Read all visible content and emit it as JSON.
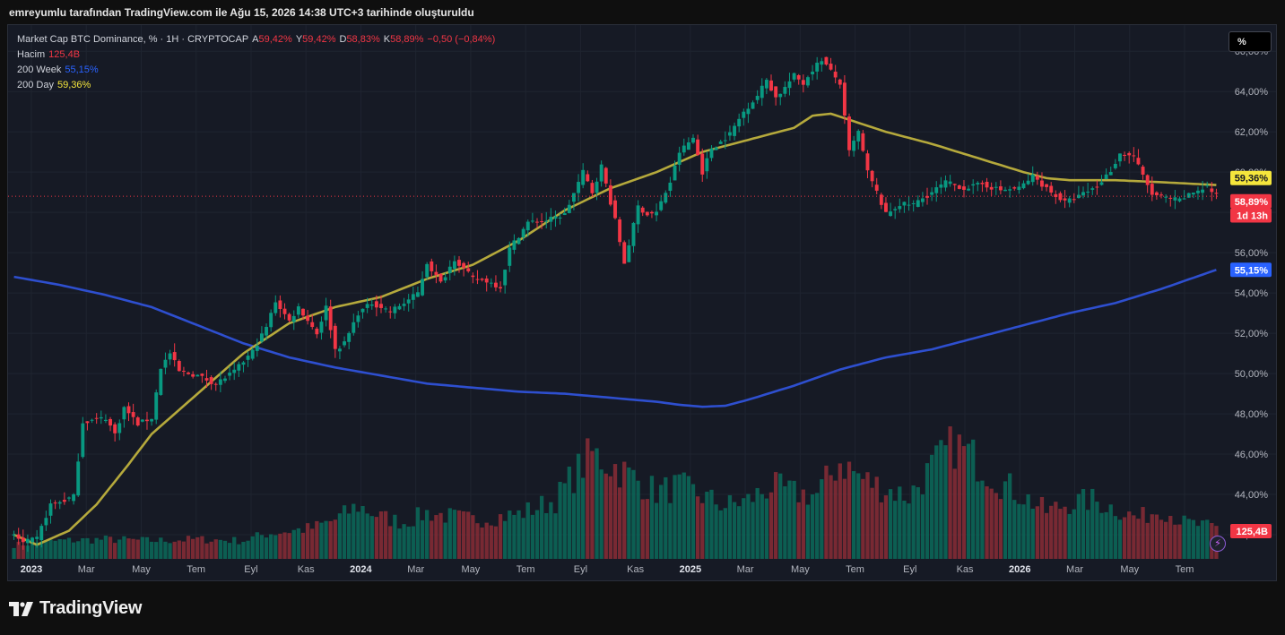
{
  "header": {
    "title": "emreyumlu tarafından TradingView.com ile Ağu 15, 2026 14:38 UTC+3 tarihinde oluşturuldu"
  },
  "legend": {
    "symbol": "Market Cap BTC Dominance, % · 1H · CRYPTOCAP",
    "open_label": "A",
    "open": "59,42%",
    "high_label": "Y",
    "high": "59,42%",
    "low_label": "D",
    "low": "58,83%",
    "close_label": "K",
    "close": "58,89%",
    "change": "−0,50 (−0,84%)",
    "volume_label": "Hacim",
    "volume": "125,4B",
    "ma200w_label": "200 Week",
    "ma200w": "55,15%",
    "ma200d_label": "200 Day",
    "ma200d": "59,36%"
  },
  "toolbar": {
    "scale_button": "%"
  },
  "footer": {
    "brand": "TradingView"
  },
  "icons": {
    "logo": "tradingview-logo-icon",
    "flash": "lightning-icon"
  },
  "colors": {
    "up": "#089981",
    "down": "#f23645",
    "ma200w": "#2e4fcf",
    "ma200d": "#b5a93c",
    "bg": "#161a25"
  },
  "chart_data": {
    "type": "candlestick",
    "title": "Market Cap BTC Dominance, % · 1H · CRYPTOCAP",
    "ylim": [
      40.8,
      67.3
    ],
    "y_ticks": [
      "42,00%",
      "44,00%",
      "46,00%",
      "48,00%",
      "50,00%",
      "52,00%",
      "54,00%",
      "56,00%",
      "58,00%",
      "60,00%",
      "62,00%",
      "64,00%",
      "66,00%"
    ],
    "x_ticks": [
      "2023",
      "Mar",
      "May",
      "Tem",
      "Eyl",
      "Kas",
      "2024",
      "Mar",
      "May",
      "Tem",
      "Eyl",
      "Kas",
      "2025",
      "Mar",
      "May",
      "Tem",
      "Eyl",
      "Kas",
      "2026",
      "Mar",
      "May",
      "Tem"
    ],
    "price_key": [
      [
        0,
        42.0
      ],
      [
        2,
        41.6
      ],
      [
        5,
        41.8
      ],
      [
        8,
        43.5
      ],
      [
        11,
        43.7
      ],
      [
        13,
        43.9
      ],
      [
        15,
        47.6
      ],
      [
        20,
        47.8
      ],
      [
        22,
        47.0
      ],
      [
        24,
        48.3
      ],
      [
        27,
        47.5
      ],
      [
        30,
        47.8
      ],
      [
        32,
        50.3
      ],
      [
        34,
        51.0
      ],
      [
        36,
        50.1
      ],
      [
        40,
        49.9
      ],
      [
        44,
        49.5
      ],
      [
        48,
        50.1
      ],
      [
        52,
        51.1
      ],
      [
        55,
        52.3
      ],
      [
        57,
        53.6
      ],
      [
        60,
        52.6
      ],
      [
        62,
        53.3
      ],
      [
        66,
        52.0
      ],
      [
        68,
        53.3
      ],
      [
        70,
        51.2
      ],
      [
        72,
        51.5
      ],
      [
        75,
        53.0
      ],
      [
        78,
        53.5
      ],
      [
        82,
        53.1
      ],
      [
        85,
        53.5
      ],
      [
        88,
        54.0
      ],
      [
        90,
        55.5
      ],
      [
        93,
        54.5
      ],
      [
        96,
        55.7
      ],
      [
        100,
        54.7
      ],
      [
        103,
        54.6
      ],
      [
        106,
        54.3
      ],
      [
        108,
        56.2
      ],
      [
        112,
        57.5
      ],
      [
        116,
        57.6
      ],
      [
        120,
        57.9
      ],
      [
        124,
        60.0
      ],
      [
        126,
        59.0
      ],
      [
        128,
        60.3
      ],
      [
        131,
        57.6
      ],
      [
        133,
        55.5
      ],
      [
        136,
        58.3
      ],
      [
        138,
        57.9
      ],
      [
        140,
        58.0
      ],
      [
        143,
        59.5
      ],
      [
        145,
        61.0
      ],
      [
        148,
        61.7
      ],
      [
        150,
        60.0
      ],
      [
        152,
        61.2
      ],
      [
        154,
        61.5
      ],
      [
        156,
        61.9
      ],
      [
        159,
        63.0
      ],
      [
        162,
        63.8
      ],
      [
        164,
        64.6
      ],
      [
        166,
        63.7
      ],
      [
        168,
        64.2
      ],
      [
        170,
        64.8
      ],
      [
        172,
        64.4
      ],
      [
        174,
        65.1
      ],
      [
        176,
        65.6
      ],
      [
        178,
        65.0
      ],
      [
        180,
        64.4
      ],
      [
        182,
        61.0
      ],
      [
        184,
        62.0
      ],
      [
        186,
        60.0
      ],
      [
        188,
        59.0
      ],
      [
        190,
        57.9
      ],
      [
        193,
        58.4
      ],
      [
        196,
        58.4
      ],
      [
        200,
        59.0
      ],
      [
        203,
        59.5
      ],
      [
        207,
        59.2
      ],
      [
        211,
        59.4
      ],
      [
        215,
        59.1
      ],
      [
        219,
        59.2
      ],
      [
        222,
        59.8
      ],
      [
        226,
        59.0
      ],
      [
        229,
        58.5
      ],
      [
        232,
        58.8
      ],
      [
        236,
        59.3
      ],
      [
        239,
        60.1
      ],
      [
        241,
        60.9
      ],
      [
        244,
        60.8
      ],
      [
        246,
        59.8
      ],
      [
        248,
        58.9
      ],
      [
        251,
        58.7
      ],
      [
        254,
        58.6
      ],
      [
        257,
        59.0
      ],
      [
        260,
        59.3
      ],
      [
        262,
        58.8
      ]
    ],
    "ma200d": [
      [
        0,
        42.0
      ],
      [
        5,
        41.5
      ],
      [
        12,
        42.2
      ],
      [
        18,
        43.5
      ],
      [
        25,
        45.5
      ],
      [
        30,
        47.0
      ],
      [
        40,
        49.0
      ],
      [
        50,
        51.0
      ],
      [
        60,
        52.5
      ],
      [
        70,
        53.3
      ],
      [
        80,
        53.8
      ],
      [
        90,
        54.7
      ],
      [
        100,
        55.4
      ],
      [
        110,
        56.6
      ],
      [
        120,
        58.1
      ],
      [
        130,
        59.2
      ],
      [
        140,
        60.0
      ],
      [
        150,
        61.0
      ],
      [
        160,
        61.6
      ],
      [
        170,
        62.2
      ],
      [
        174,
        62.8
      ],
      [
        178,
        62.9
      ],
      [
        182,
        62.6
      ],
      [
        190,
        62.0
      ],
      [
        200,
        61.4
      ],
      [
        210,
        60.7
      ],
      [
        220,
        60.0
      ],
      [
        225,
        59.7
      ],
      [
        230,
        59.6
      ],
      [
        240,
        59.6
      ],
      [
        250,
        59.5
      ],
      [
        262,
        59.36
      ]
    ],
    "ma200w": [
      [
        0,
        54.8
      ],
      [
        10,
        54.4
      ],
      [
        20,
        53.9
      ],
      [
        30,
        53.3
      ],
      [
        40,
        52.4
      ],
      [
        50,
        51.5
      ],
      [
        60,
        50.8
      ],
      [
        70,
        50.3
      ],
      [
        80,
        49.9
      ],
      [
        90,
        49.5
      ],
      [
        100,
        49.3
      ],
      [
        110,
        49.1
      ],
      [
        120,
        49.0
      ],
      [
        130,
        48.8
      ],
      [
        140,
        48.6
      ],
      [
        145,
        48.45
      ],
      [
        150,
        48.35
      ],
      [
        155,
        48.4
      ],
      [
        160,
        48.7
      ],
      [
        170,
        49.4
      ],
      [
        180,
        50.2
      ],
      [
        190,
        50.8
      ],
      [
        200,
        51.2
      ],
      [
        210,
        51.8
      ],
      [
        220,
        52.4
      ],
      [
        230,
        53.0
      ],
      [
        240,
        53.5
      ],
      [
        250,
        54.2
      ],
      [
        262,
        55.15
      ]
    ],
    "volume_key": [
      [
        0,
        0.1
      ],
      [
        10,
        0.13
      ],
      [
        20,
        0.14
      ],
      [
        30,
        0.13
      ],
      [
        40,
        0.14
      ],
      [
        50,
        0.13
      ],
      [
        55,
        0.18
      ],
      [
        65,
        0.22
      ],
      [
        70,
        0.28
      ],
      [
        75,
        0.38
      ],
      [
        80,
        0.3
      ],
      [
        85,
        0.26
      ],
      [
        90,
        0.33
      ],
      [
        100,
        0.28
      ],
      [
        110,
        0.32
      ],
      [
        118,
        0.42
      ],
      [
        122,
        0.6
      ],
      [
        126,
        0.75
      ],
      [
        130,
        0.68
      ],
      [
        135,
        0.58
      ],
      [
        140,
        0.48
      ],
      [
        145,
        0.52
      ],
      [
        150,
        0.45
      ],
      [
        155,
        0.38
      ],
      [
        160,
        0.42
      ],
      [
        165,
        0.52
      ],
      [
        170,
        0.47
      ],
      [
        175,
        0.46
      ],
      [
        180,
        0.7
      ],
      [
        185,
        0.57
      ],
      [
        190,
        0.5
      ],
      [
        195,
        0.45
      ],
      [
        200,
        0.65
      ],
      [
        205,
        0.82
      ],
      [
        210,
        0.7
      ],
      [
        215,
        0.55
      ],
      [
        220,
        0.45
      ],
      [
        225,
        0.34
      ],
      [
        230,
        0.4
      ],
      [
        235,
        0.42
      ],
      [
        240,
        0.36
      ],
      [
        245,
        0.29
      ],
      [
        250,
        0.36
      ],
      [
        255,
        0.26
      ],
      [
        262,
        0.22
      ]
    ],
    "last_price_label": "58,89%",
    "countdown_label": "1d 13h",
    "ma200d_label": "59,36%",
    "ma200w_label": "55,15%",
    "volume_label": "125,4B"
  }
}
